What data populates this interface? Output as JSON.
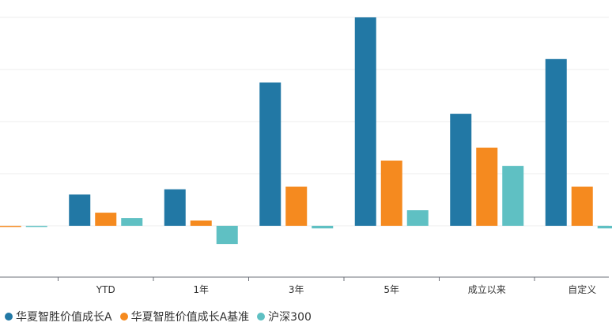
{
  "chart_data": {
    "type": "bar",
    "categories": [
      "",
      "YTD",
      "1年",
      "3年",
      "5年",
      "成立以来",
      "自定义"
    ],
    "series": [
      {
        "name": "华夏智胜价值成长A",
        "color": "#2278a5",
        "values": [
          0,
          12,
          14,
          55,
          80,
          43,
          64
        ]
      },
      {
        "name": "华夏智胜价值成长A基准",
        "color": "#f58a1f",
        "values": [
          0,
          5,
          2,
          15,
          25,
          30,
          15
        ]
      },
      {
        "name": "沪深300",
        "color": "#5fc0c3",
        "values": [
          0,
          3,
          -7,
          -1,
          6,
          23,
          -1
        ]
      }
    ],
    "ylim": [
      -20,
      80
    ],
    "grid": true,
    "legend": "bottom-left"
  }
}
